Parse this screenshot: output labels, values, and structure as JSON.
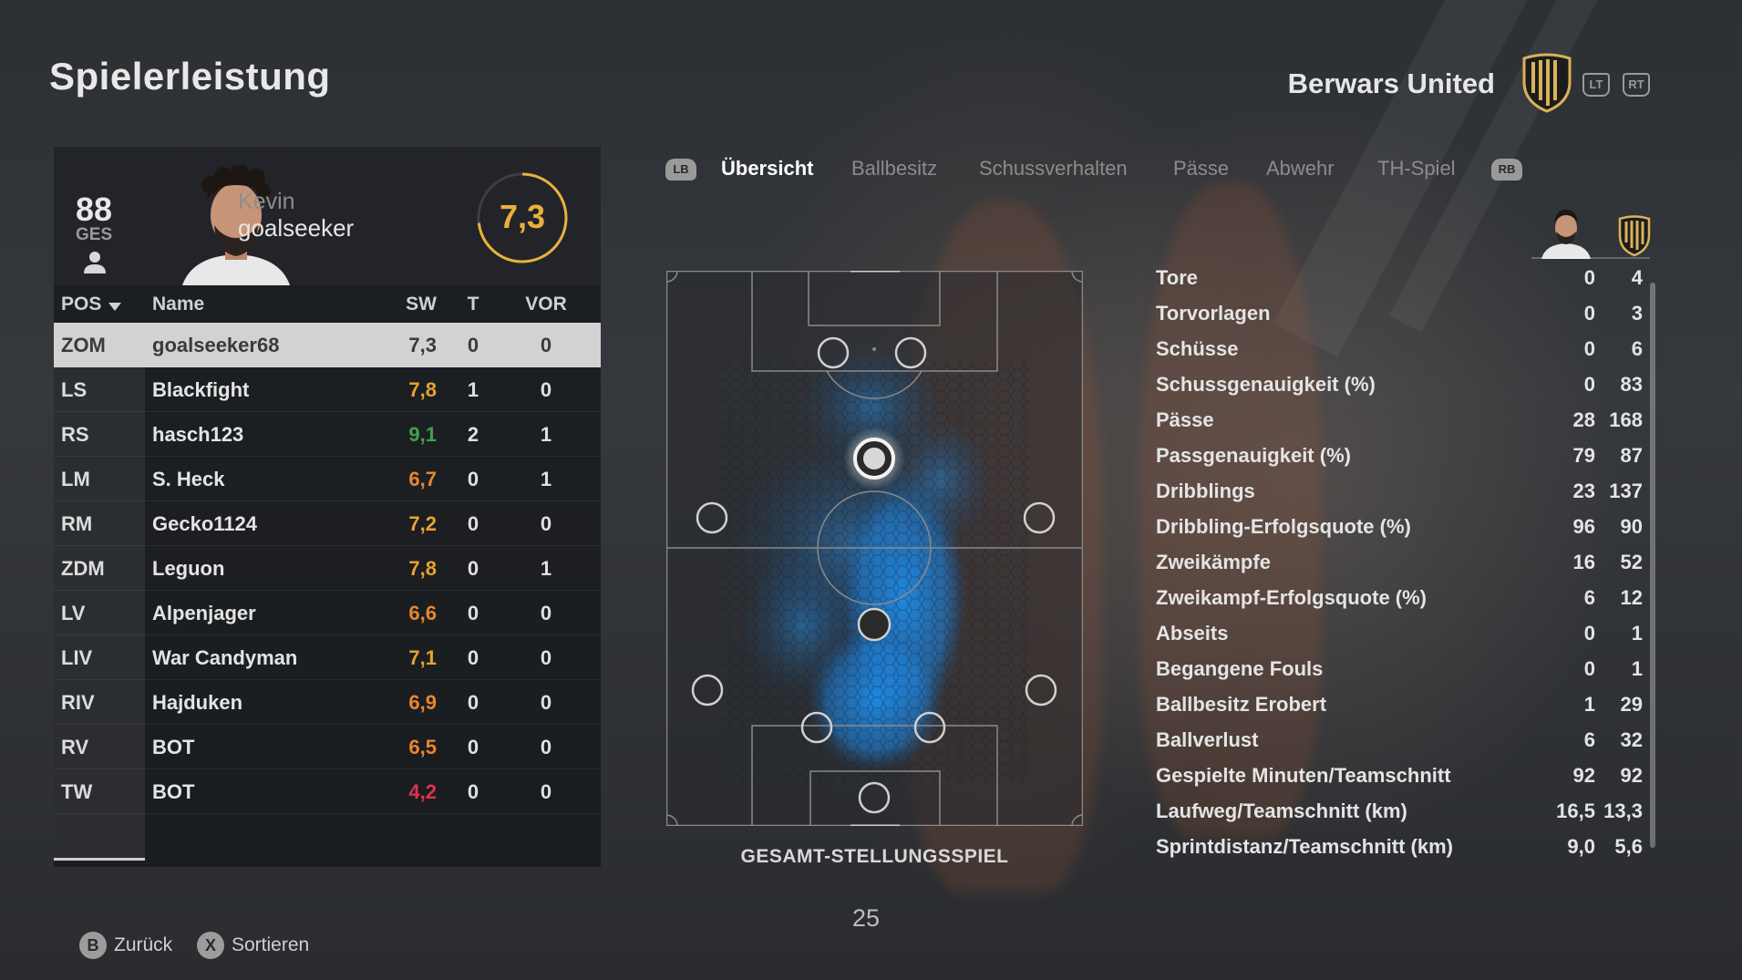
{
  "header": {
    "title": "Spielerleistung",
    "team_name": "Berwars United",
    "lt": "LT",
    "rt": "RT"
  },
  "player": {
    "overall": "88",
    "overall_label": "GES",
    "first_name": "Kevin",
    "last_name": "goalseeker",
    "rating": "7,3",
    "rating_fraction": 0.73
  },
  "table": {
    "headers": {
      "pos": "POS",
      "name": "Name",
      "sw": "SW",
      "t": "T",
      "vor": "VOR"
    },
    "rows": [
      {
        "pos": "ZOM",
        "name": "goalseeker68",
        "sw": "7,3",
        "t": "0",
        "vor": "0",
        "sw_color": "#3a3a3a"
      },
      {
        "pos": "LS",
        "name": "Blackfight",
        "sw": "7,8",
        "t": "1",
        "vor": "0",
        "sw_color": "#e8a32e"
      },
      {
        "pos": "RS",
        "name": "hasch123",
        "sw": "9,1",
        "t": "2",
        "vor": "1",
        "sw_color": "#3fa34a"
      },
      {
        "pos": "LM",
        "name": "S. Heck",
        "sw": "6,7",
        "t": "0",
        "vor": "1",
        "sw_color": "#e8862e"
      },
      {
        "pos": "RM",
        "name": "Gecko1124",
        "sw": "7,2",
        "t": "0",
        "vor": "0",
        "sw_color": "#e8a32e"
      },
      {
        "pos": "ZDM",
        "name": "Leguon",
        "sw": "7,8",
        "t": "0",
        "vor": "1",
        "sw_color": "#e8a32e"
      },
      {
        "pos": "LV",
        "name": "Alpenjager",
        "sw": "6,6",
        "t": "0",
        "vor": "0",
        "sw_color": "#e8862e"
      },
      {
        "pos": "LIV",
        "name": "War Candyman",
        "sw": "7,1",
        "t": "0",
        "vor": "0",
        "sw_color": "#e8a32e"
      },
      {
        "pos": "RIV",
        "name": "Hajduken",
        "sw": "6,9",
        "t": "0",
        "vor": "0",
        "sw_color": "#e8862e"
      },
      {
        "pos": "RV",
        "name": "BOT",
        "sw": "6,5",
        "t": "0",
        "vor": "0",
        "sw_color": "#e8862e"
      },
      {
        "pos": "TW",
        "name": "BOT",
        "sw": "4,2",
        "t": "0",
        "vor": "0",
        "sw_color": "#e0334a"
      }
    ]
  },
  "tabs": {
    "lb": "LB",
    "rb": "RB",
    "items": [
      "Übersicht",
      "Ballbesitz",
      "Schussverhalten",
      "Pässe",
      "Abwehr",
      "TH-Spiel"
    ],
    "active_index": 0
  },
  "pitch": {
    "caption": "GESAMT-STELLUNGSSPIEL",
    "heat_color": "#1e8be6"
  },
  "pagination": {
    "page": "25"
  },
  "stats": [
    {
      "label": "Tore",
      "player": "0",
      "team": "4"
    },
    {
      "label": "Torvorlagen",
      "player": "0",
      "team": "3"
    },
    {
      "label": "Schüsse",
      "player": "0",
      "team": "6"
    },
    {
      "label": "Schussgenauigkeit (%)",
      "player": "0",
      "team": "83"
    },
    {
      "label": "Pässe",
      "player": "28",
      "team": "168"
    },
    {
      "label": "Passgenauigkeit (%)",
      "player": "79",
      "team": "87"
    },
    {
      "label": "Dribblings",
      "player": "23",
      "team": "137"
    },
    {
      "label": "Dribbling-Erfolgsquote (%)",
      "player": "96",
      "team": "90"
    },
    {
      "label": "Zweikämpfe",
      "player": "16",
      "team": "52"
    },
    {
      "label": "Zweikampf-Erfolgsquote (%)",
      "player": "6",
      "team": "12"
    },
    {
      "label": "Abseits",
      "player": "0",
      "team": "1"
    },
    {
      "label": "Begangene Fouls",
      "player": "0",
      "team": "1"
    },
    {
      "label": "Ballbesitz Erobert",
      "player": "1",
      "team": "29"
    },
    {
      "label": "Ballverlust",
      "player": "6",
      "team": "32"
    },
    {
      "label": "Gespielte Minuten/Teamschnitt",
      "player": "92",
      "team": "92"
    },
    {
      "label": "Laufweg/Teamschnitt (km)",
      "player": "16,5",
      "team": "13,3"
    },
    {
      "label": "Sprintdistanz/Teamschnitt (km)",
      "player": "9,0",
      "team": "5,6"
    }
  ],
  "footer": {
    "back_key": "B",
    "back_label": "Zurück",
    "sort_key": "X",
    "sort_label": "Sortieren"
  },
  "colors": {
    "accent_gold": "#e8b23a",
    "selected_row": "#d2d2d2"
  }
}
